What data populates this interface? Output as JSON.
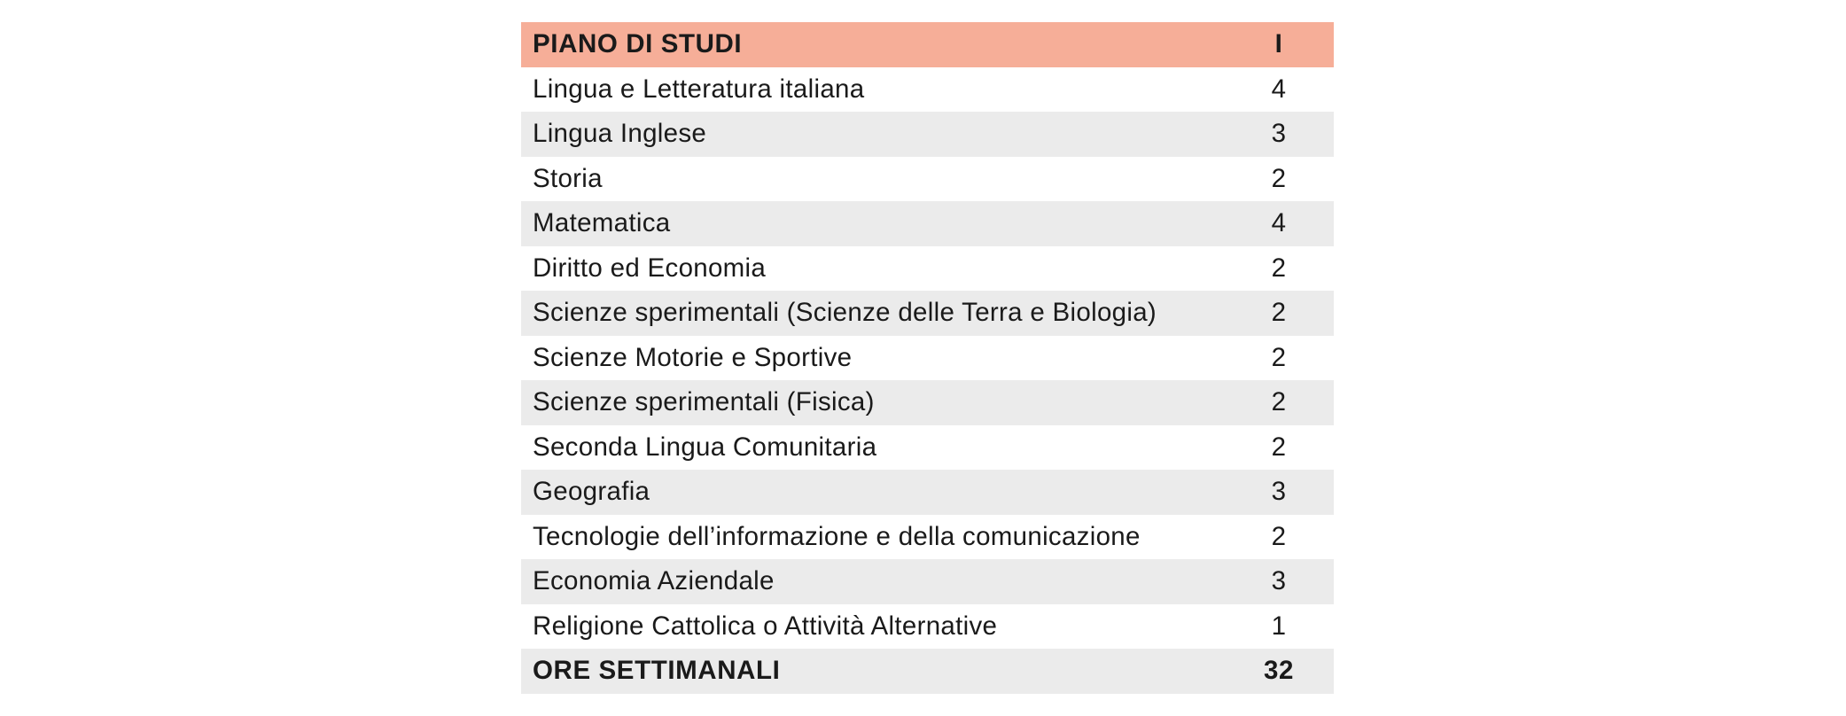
{
  "table": {
    "header": {
      "subject": "PIANO DI STUDI",
      "hours": "I"
    },
    "rows": [
      {
        "subject": "Lingua e Letteratura italiana",
        "hours": "4"
      },
      {
        "subject": "Lingua Inglese",
        "hours": "3"
      },
      {
        "subject": "Storia",
        "hours": "2"
      },
      {
        "subject": "Matematica",
        "hours": "4"
      },
      {
        "subject": "Diritto ed Economia",
        "hours": "2"
      },
      {
        "subject": "Scienze sperimentali (Scienze delle Terra e Biologia)",
        "hours": "2"
      },
      {
        "subject": "Scienze Motorie e Sportive",
        "hours": "2"
      },
      {
        "subject": "Scienze sperimentali (Fisica)",
        "hours": "2"
      },
      {
        "subject": "Seconda Lingua Comunitaria",
        "hours": "2"
      },
      {
        "subject": "Geografia",
        "hours": "3"
      },
      {
        "subject": "Tecnologie dell’informazione e della comunicazione",
        "hours": "2"
      },
      {
        "subject": "Economia Aziendale",
        "hours": "3"
      },
      {
        "subject": "Religione Cattolica o Attività Alternative",
        "hours": "1"
      }
    ],
    "footer": {
      "subject": "ORE SETTIMANALI",
      "hours": "32"
    }
  },
  "colors": {
    "header_bg": "#f6ae98",
    "alt_row_bg": "#ebebeb",
    "text": "#1a1a1a"
  }
}
